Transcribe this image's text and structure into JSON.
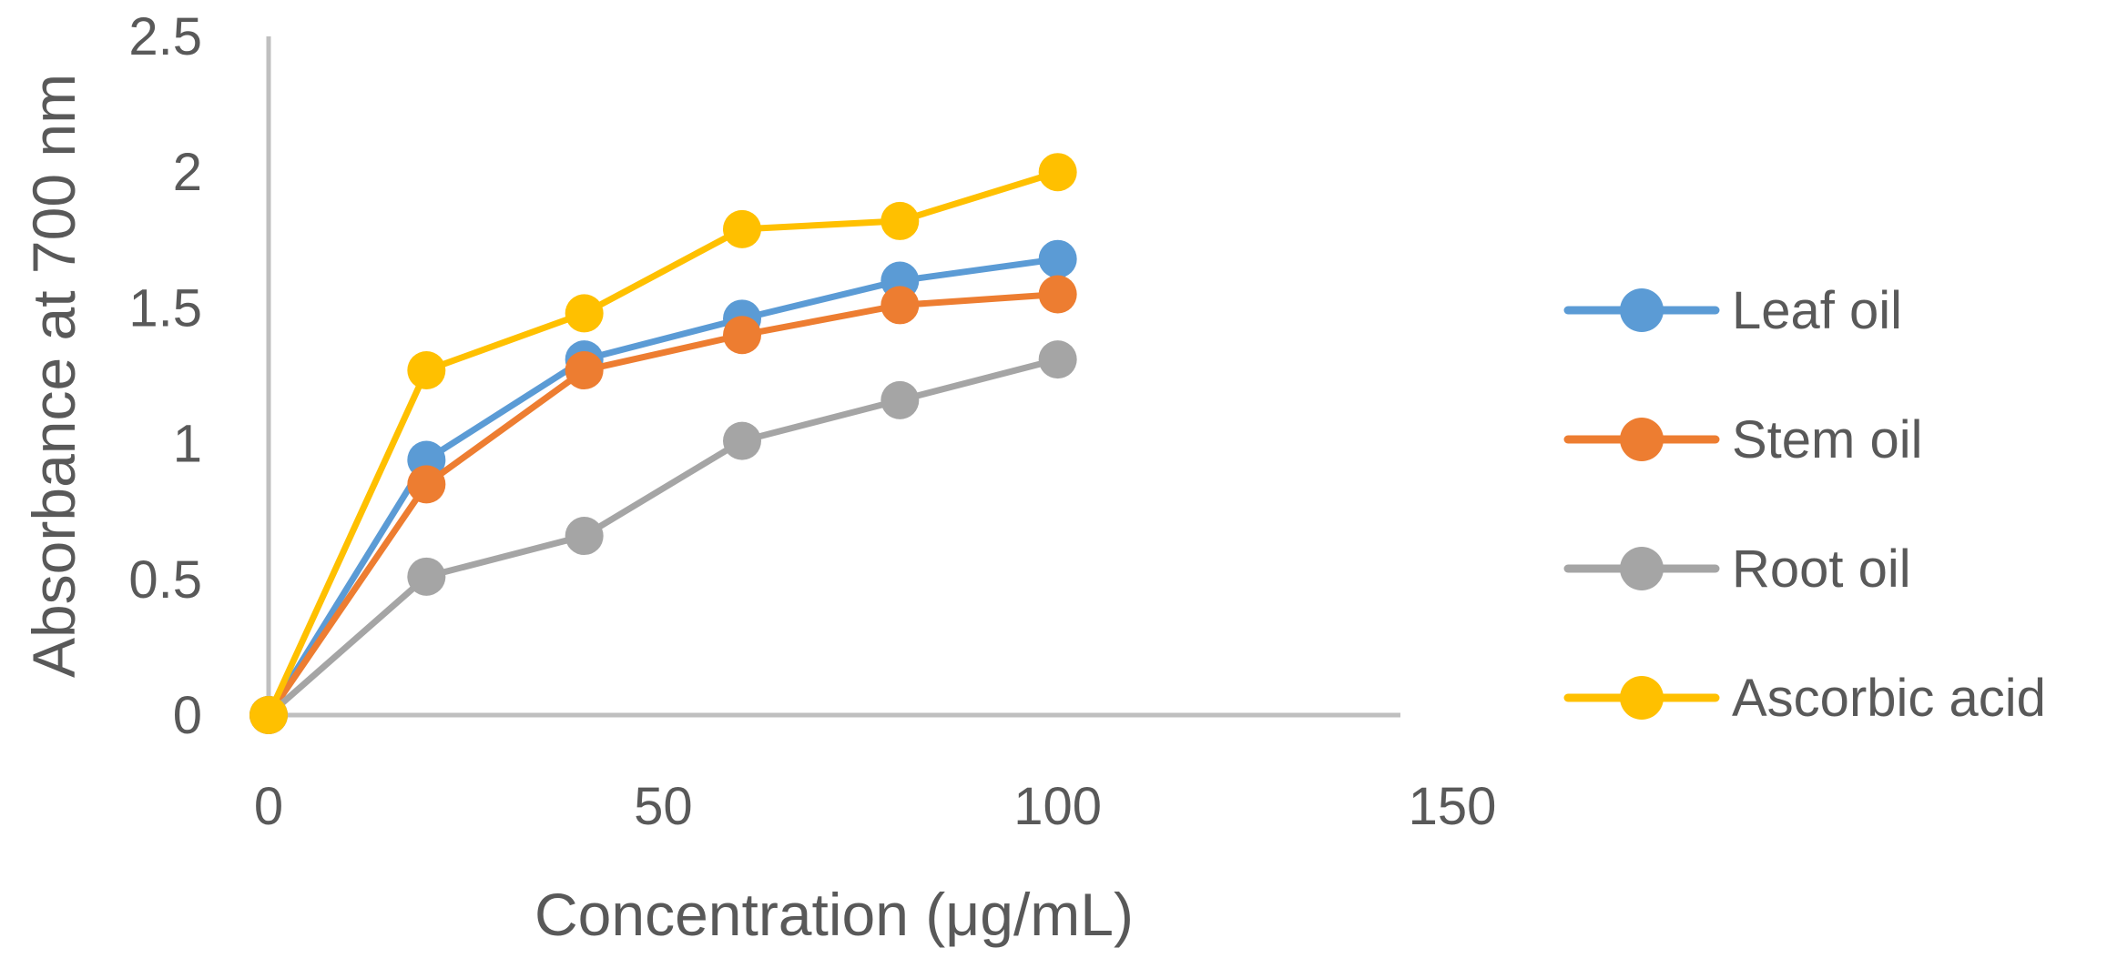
{
  "chart_data": {
    "type": "scatter",
    "xlabel": "Concentration (μg/mL)",
    "ylabel": "Absorbance at 700 nm",
    "xlim": [
      0,
      150
    ],
    "ylim": [
      0,
      2.5
    ],
    "x_ticks": [
      0,
      50,
      100,
      150
    ],
    "y_ticks": [
      0,
      0.5,
      1,
      1.5,
      2,
      2.5
    ],
    "x_tick_labels": [
      "0",
      "50",
      "100",
      "150"
    ],
    "y_tick_labels": [
      "0",
      "0.5",
      "1",
      "1.5",
      "2",
      "2.5"
    ],
    "legend_position": "right",
    "x": [
      0,
      20,
      40,
      60,
      80,
      100
    ],
    "series": [
      {
        "name": "Leaf oil",
        "color": "#5B9BD5",
        "values": [
          0,
          0.94,
          1.31,
          1.46,
          1.6,
          1.68
        ]
      },
      {
        "name": "Stem oil",
        "color": "#ED7D31",
        "values": [
          0,
          0.85,
          1.27,
          1.4,
          1.51,
          1.55
        ]
      },
      {
        "name": "Root oil",
        "color": "#A5A5A5",
        "values": [
          0,
          0.51,
          0.66,
          1.01,
          1.16,
          1.31
        ]
      },
      {
        "name": "Ascorbic acid",
        "color": "#FFC000",
        "values": [
          0,
          1.27,
          1.48,
          1.79,
          1.82,
          2.0
        ]
      }
    ]
  }
}
